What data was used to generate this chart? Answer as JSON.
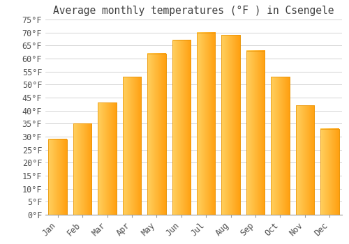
{
  "title": "Average monthly temperatures (°F ) in Csengele",
  "months": [
    "Jan",
    "Feb",
    "Mar",
    "Apr",
    "May",
    "Jun",
    "Jul",
    "Aug",
    "Sep",
    "Oct",
    "Nov",
    "Dec"
  ],
  "values": [
    29,
    35,
    43,
    53,
    62,
    67,
    70,
    69,
    63,
    53,
    42,
    33
  ],
  "bar_color_left": "#FFB830",
  "bar_color_right": "#FFA500",
  "bar_edge_color": "#E89000",
  "background_color": "#FFFFFF",
  "grid_color": "#CCCCCC",
  "title_color": "#404040",
  "tick_label_color": "#505050",
  "ylim": [
    0,
    75
  ],
  "yticks": [
    0,
    5,
    10,
    15,
    20,
    25,
    30,
    35,
    40,
    45,
    50,
    55,
    60,
    65,
    70,
    75
  ],
  "ylabel_suffix": "°F",
  "title_fontsize": 10.5,
  "tick_fontsize": 8.5,
  "font_family": "monospace",
  "bar_width": 0.75
}
